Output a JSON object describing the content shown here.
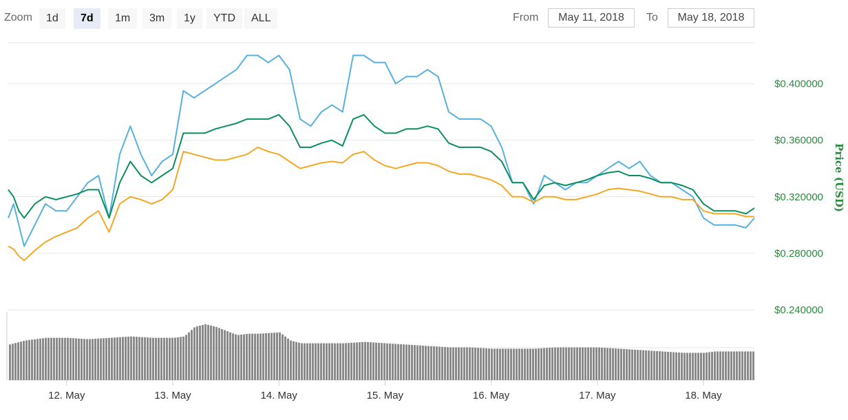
{
  "toolbar": {
    "zoom_label": "Zoom",
    "buttons": [
      "1d",
      "7d",
      "1m",
      "3m",
      "1y",
      "YTD",
      "ALL"
    ],
    "active": "7d",
    "from_label": "From",
    "from_value": "May 11, 2018",
    "to_label": "To",
    "to_value": "May 18, 2018"
  },
  "colors": {
    "series_blue": "#55b0e0",
    "series_green": "#0a8f5c",
    "series_orange": "#f5a623",
    "volume": "#8a8a8a",
    "axis_text": "#2b8a3e",
    "grid": "#e6e6e6"
  },
  "chart_data": {
    "type": "line",
    "ylabel": "Price (USD)",
    "yticks": [
      "$0.400000",
      "$0.360000",
      "$0.320000",
      "$0.280000",
      "$0.240000"
    ],
    "ytick_values": [
      0.4,
      0.36,
      0.32,
      0.28,
      0.24
    ],
    "ylim": [
      0.24,
      0.43
    ],
    "xlim": [
      11.45,
      18.48
    ],
    "xticks": [
      "12. May",
      "13. May",
      "14. May",
      "15. May",
      "16. May",
      "17. May",
      "18. May"
    ],
    "xtick_values": [
      12,
      13,
      14,
      15,
      16,
      17,
      18
    ],
    "grid": true,
    "series": [
      {
        "color": "#55b0e0",
        "x": [
          11.45,
          11.5,
          11.55,
          11.6,
          11.7,
          11.8,
          11.9,
          12.0,
          12.1,
          12.2,
          12.3,
          12.4,
          12.5,
          12.6,
          12.7,
          12.8,
          12.9,
          13.0,
          13.1,
          13.2,
          13.3,
          13.4,
          13.5,
          13.6,
          13.7,
          13.8,
          13.9,
          14.0,
          14.1,
          14.2,
          14.3,
          14.4,
          14.5,
          14.6,
          14.7,
          14.8,
          14.9,
          15.0,
          15.1,
          15.2,
          15.3,
          15.4,
          15.5,
          15.6,
          15.7,
          15.8,
          15.9,
          16.0,
          16.1,
          16.2,
          16.3,
          16.4,
          16.5,
          16.6,
          16.7,
          16.8,
          16.9,
          17.0,
          17.1,
          17.2,
          17.3,
          17.4,
          17.5,
          17.6,
          17.7,
          17.8,
          17.9,
          18.0,
          18.1,
          18.2,
          18.3,
          18.4,
          18.48
        ],
        "y": [
          0.305,
          0.315,
          0.3,
          0.285,
          0.3,
          0.315,
          0.31,
          0.31,
          0.32,
          0.33,
          0.335,
          0.305,
          0.35,
          0.37,
          0.35,
          0.335,
          0.345,
          0.35,
          0.395,
          0.39,
          0.395,
          0.4,
          0.405,
          0.41,
          0.42,
          0.42,
          0.415,
          0.42,
          0.41,
          0.375,
          0.37,
          0.38,
          0.385,
          0.38,
          0.42,
          0.42,
          0.415,
          0.415,
          0.4,
          0.405,
          0.405,
          0.41,
          0.405,
          0.38,
          0.375,
          0.375,
          0.375,
          0.37,
          0.355,
          0.33,
          0.33,
          0.315,
          0.335,
          0.33,
          0.325,
          0.33,
          0.33,
          0.335,
          0.34,
          0.345,
          0.34,
          0.345,
          0.335,
          0.33,
          0.33,
          0.325,
          0.32,
          0.305,
          0.3,
          0.3,
          0.3,
          0.298,
          0.305
        ]
      },
      {
        "color": "#0a8f5c",
        "x": [
          11.45,
          11.5,
          11.55,
          11.6,
          11.7,
          11.8,
          11.9,
          12.0,
          12.1,
          12.2,
          12.3,
          12.4,
          12.5,
          12.6,
          12.7,
          12.8,
          12.9,
          13.0,
          13.1,
          13.2,
          13.3,
          13.4,
          13.5,
          13.6,
          13.7,
          13.8,
          13.9,
          14.0,
          14.1,
          14.2,
          14.3,
          14.4,
          14.5,
          14.6,
          14.7,
          14.8,
          14.9,
          15.0,
          15.1,
          15.2,
          15.3,
          15.4,
          15.5,
          15.6,
          15.7,
          15.8,
          15.9,
          16.0,
          16.1,
          16.2,
          16.3,
          16.4,
          16.5,
          16.6,
          16.7,
          16.8,
          16.9,
          17.0,
          17.1,
          17.2,
          17.3,
          17.4,
          17.5,
          17.6,
          17.7,
          17.8,
          17.9,
          18.0,
          18.1,
          18.2,
          18.3,
          18.4,
          18.48
        ],
        "y": [
          0.325,
          0.32,
          0.31,
          0.305,
          0.315,
          0.32,
          0.318,
          0.32,
          0.322,
          0.325,
          0.325,
          0.305,
          0.33,
          0.345,
          0.335,
          0.33,
          0.335,
          0.34,
          0.365,
          0.365,
          0.365,
          0.368,
          0.37,
          0.372,
          0.375,
          0.375,
          0.375,
          0.378,
          0.37,
          0.355,
          0.355,
          0.358,
          0.36,
          0.356,
          0.375,
          0.378,
          0.37,
          0.365,
          0.365,
          0.368,
          0.368,
          0.37,
          0.368,
          0.358,
          0.355,
          0.355,
          0.355,
          0.352,
          0.345,
          0.33,
          0.33,
          0.318,
          0.328,
          0.33,
          0.328,
          0.33,
          0.332,
          0.335,
          0.337,
          0.338,
          0.335,
          0.335,
          0.333,
          0.33,
          0.33,
          0.328,
          0.325,
          0.315,
          0.31,
          0.31,
          0.31,
          0.308,
          0.312
        ]
      },
      {
        "color": "#f5a623",
        "x": [
          11.45,
          11.5,
          11.55,
          11.6,
          11.7,
          11.8,
          11.9,
          12.0,
          12.1,
          12.2,
          12.3,
          12.4,
          12.5,
          12.6,
          12.7,
          12.8,
          12.9,
          13.0,
          13.1,
          13.2,
          13.3,
          13.4,
          13.5,
          13.6,
          13.7,
          13.8,
          13.9,
          14.0,
          14.1,
          14.2,
          14.3,
          14.4,
          14.5,
          14.6,
          14.7,
          14.8,
          14.9,
          15.0,
          15.1,
          15.2,
          15.3,
          15.4,
          15.5,
          15.6,
          15.7,
          15.8,
          15.9,
          16.0,
          16.1,
          16.2,
          16.3,
          16.4,
          16.5,
          16.6,
          16.7,
          16.8,
          16.9,
          17.0,
          17.1,
          17.2,
          17.3,
          17.4,
          17.5,
          17.6,
          17.7,
          17.8,
          17.9,
          18.0,
          18.1,
          18.2,
          18.3,
          18.4,
          18.48
        ],
        "y": [
          0.285,
          0.283,
          0.278,
          0.275,
          0.282,
          0.288,
          0.292,
          0.295,
          0.298,
          0.305,
          0.31,
          0.295,
          0.315,
          0.32,
          0.318,
          0.315,
          0.318,
          0.325,
          0.352,
          0.35,
          0.348,
          0.346,
          0.346,
          0.348,
          0.35,
          0.355,
          0.352,
          0.35,
          0.345,
          0.34,
          0.342,
          0.344,
          0.345,
          0.344,
          0.35,
          0.352,
          0.346,
          0.342,
          0.34,
          0.342,
          0.344,
          0.344,
          0.342,
          0.338,
          0.336,
          0.336,
          0.334,
          0.332,
          0.328,
          0.32,
          0.32,
          0.316,
          0.32,
          0.32,
          0.318,
          0.318,
          0.32,
          0.322,
          0.325,
          0.326,
          0.325,
          0.324,
          0.322,
          0.32,
          0.32,
          0.318,
          0.318,
          0.31,
          0.308,
          0.308,
          0.308,
          0.306,
          0.306
        ]
      }
    ],
    "volume": {
      "x": [
        11.45,
        11.6,
        11.8,
        12.0,
        12.2,
        12.4,
        12.6,
        12.8,
        13.0,
        13.1,
        13.2,
        13.3,
        13.4,
        13.5,
        13.6,
        13.7,
        13.8,
        14.0,
        14.1,
        14.2,
        14.4,
        14.6,
        14.8,
        15.0,
        15.2,
        15.4,
        15.6,
        15.8,
        16.0,
        16.2,
        16.4,
        16.6,
        16.8,
        17.0,
        17.2,
        17.4,
        17.6,
        17.8,
        18.0,
        18.1,
        18.2,
        18.48
      ],
      "y": [
        52,
        58,
        62,
        62,
        60,
        62,
        64,
        62,
        62,
        64,
        78,
        82,
        78,
        72,
        66,
        68,
        68,
        70,
        58,
        54,
        54,
        54,
        56,
        54,
        52,
        50,
        48,
        48,
        46,
        46,
        46,
        48,
        48,
        48,
        46,
        44,
        42,
        40,
        40,
        42,
        42,
        42
      ]
    }
  }
}
